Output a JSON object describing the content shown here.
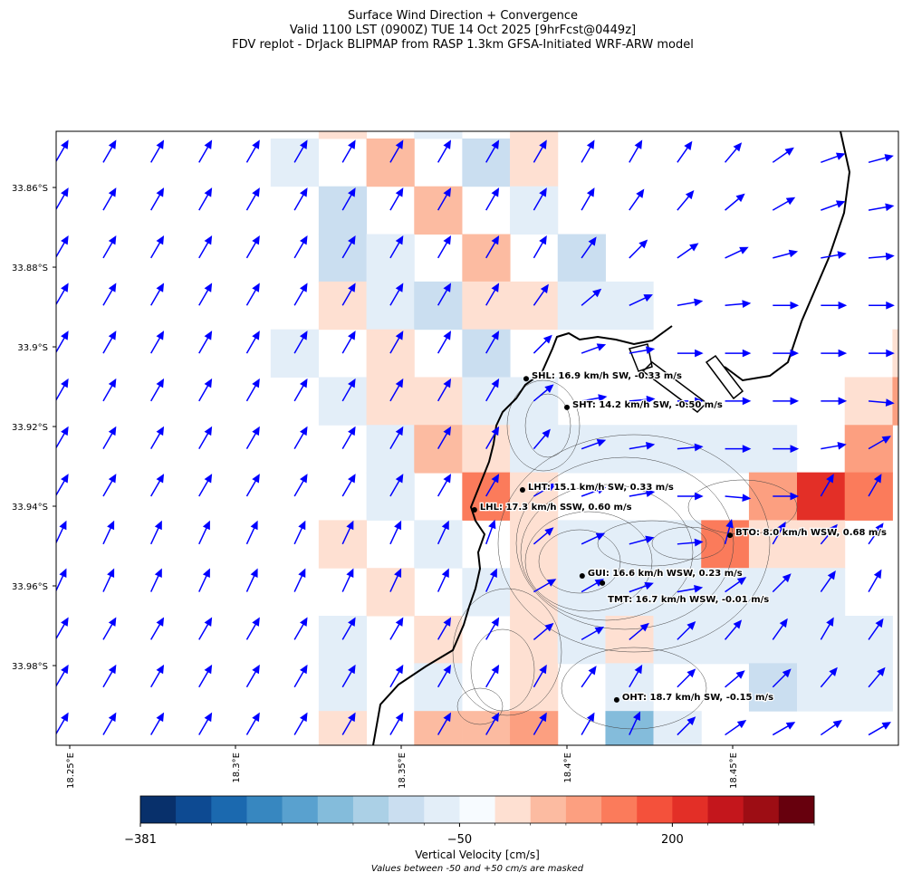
{
  "chart_data": {
    "type": "map",
    "title": [
      "Surface Wind Direction + Convergence",
      "Valid 1100 LST (0900Z) TUE 14 Oct 2025 [9hrFcst@0449z]",
      "FDV replot - DrJack BLIPMAP from RASP 1.3km GFSA-Initiated WRF-ARW model"
    ],
    "xlim": [
      18.2459,
      18.5
    ],
    "ylim": [
      -34.0,
      -33.8459
    ],
    "xticks": [
      {
        "value": 18.25,
        "label": "18.25°E"
      },
      {
        "value": 18.3,
        "label": "18.3°E"
      },
      {
        "value": 18.35,
        "label": "18.35°E"
      },
      {
        "value": 18.4,
        "label": "18.4°E"
      },
      {
        "value": 18.45,
        "label": "18.45°E"
      }
    ],
    "yticks": [
      {
        "value": -33.86,
        "label": "33.86°S"
      },
      {
        "value": -33.88,
        "label": "33.88°S"
      },
      {
        "value": -33.9,
        "label": "33.9°S"
      },
      {
        "value": -33.92,
        "label": "33.92°S"
      },
      {
        "value": -33.94,
        "label": "33.94°S"
      },
      {
        "value": -33.96,
        "label": "33.96°S"
      },
      {
        "value": -33.98,
        "label": "33.98°S"
      }
    ],
    "grid_lon": [
      18.2457,
      18.2601,
      18.2745,
      18.289,
      18.3034,
      18.3178,
      18.3323,
      18.3467,
      18.3611,
      18.3756,
      18.39,
      18.4044,
      18.4188,
      18.4333,
      18.4477,
      18.4621,
      18.4766,
      18.491,
      18.5054
    ],
    "grid_lat": [
      -33.8417,
      -33.8537,
      -33.8657,
      -33.8777,
      -33.8896,
      -33.9016,
      -33.9136,
      -33.9256,
      -33.9375,
      -33.9495,
      -33.9615,
      -33.9735,
      -33.9854,
      -33.9974
    ],
    "vertical_velocity": [
      [
        null,
        null,
        null,
        null,
        null,
        null,
        65,
        null,
        -60,
        null,
        65,
        null,
        null,
        null,
        null,
        null,
        null,
        null,
        null
      ],
      [
        null,
        null,
        null,
        null,
        null,
        -60,
        null,
        95,
        null,
        -100,
        65,
        null,
        null,
        null,
        null,
        null,
        null,
        null,
        null
      ],
      [
        null,
        null,
        null,
        null,
        null,
        null,
        -100,
        null,
        95,
        null,
        -60,
        null,
        null,
        null,
        null,
        null,
        null,
        null,
        null
      ],
      [
        null,
        null,
        null,
        null,
        null,
        null,
        -100,
        -60,
        null,
        95,
        null,
        -100,
        null,
        null,
        null,
        null,
        null,
        null,
        null
      ],
      [
        null,
        null,
        null,
        null,
        null,
        null,
        65,
        -60,
        -100,
        65,
        65,
        -60,
        -60,
        null,
        null,
        null,
        null,
        null,
        null
      ],
      [
        null,
        null,
        null,
        null,
        null,
        -60,
        null,
        65,
        null,
        -100,
        null,
        null,
        null,
        null,
        null,
        null,
        null,
        null,
        65
      ],
      [
        null,
        null,
        null,
        null,
        null,
        null,
        -60,
        65,
        65,
        -60,
        -60,
        null,
        null,
        null,
        null,
        null,
        null,
        65,
        125
      ],
      [
        null,
        null,
        null,
        null,
        null,
        null,
        null,
        -60,
        95,
        65,
        -60,
        -60,
        -60,
        -60,
        -60,
        -60,
        null,
        125,
        null
      ],
      [
        null,
        null,
        null,
        null,
        null,
        null,
        null,
        -60,
        null,
        155,
        65,
        null,
        null,
        null,
        null,
        125,
        215,
        155,
        null
      ],
      [
        null,
        null,
        null,
        null,
        null,
        null,
        65,
        null,
        -60,
        null,
        65,
        -60,
        -60,
        -60,
        155,
        65,
        65,
        null,
        null
      ],
      [
        null,
        null,
        null,
        null,
        null,
        null,
        null,
        65,
        null,
        -60,
        65,
        -60,
        -60,
        -60,
        -60,
        -60,
        -60,
        null,
        null
      ],
      [
        null,
        null,
        null,
        null,
        null,
        null,
        -60,
        null,
        65,
        null,
        65,
        -60,
        65,
        -60,
        -60,
        -60,
        -60,
        -60,
        null
      ],
      [
        null,
        null,
        null,
        null,
        null,
        null,
        -60,
        null,
        -60,
        null,
        65,
        null,
        -60,
        null,
        null,
        -100,
        -60,
        -60,
        null
      ],
      [
        null,
        null,
        null,
        null,
        null,
        null,
        65,
        null,
        95,
        95,
        125,
        null,
        -180,
        -60,
        null,
        null,
        null,
        null,
        null
      ]
    ],
    "wind_toward_deg": [
      [
        null,
        null,
        null,
        null,
        null,
        null,
        null,
        null,
        null,
        null,
        null,
        null,
        null,
        null,
        null,
        null,
        null,
        null,
        null
      ],
      [
        60,
        60,
        60,
        60,
        60,
        60,
        60,
        60,
        60,
        60,
        60,
        60,
        60,
        55,
        50,
        35,
        20,
        15,
        null
      ],
      [
        60,
        60,
        60,
        60,
        60,
        60,
        60,
        60,
        60,
        60,
        60,
        60,
        55,
        50,
        40,
        30,
        20,
        10,
        null
      ],
      [
        60,
        60,
        60,
        60,
        60,
        60,
        60,
        60,
        60,
        60,
        60,
        55,
        45,
        35,
        25,
        15,
        10,
        5,
        null
      ],
      [
        60,
        60,
        60,
        60,
        60,
        60,
        60,
        60,
        60,
        60,
        55,
        40,
        25,
        10,
        5,
        0,
        0,
        0,
        null
      ],
      [
        60,
        60,
        60,
        60,
        60,
        60,
        60,
        60,
        60,
        60,
        45,
        20,
        10,
        0,
        0,
        0,
        0,
        0,
        null
      ],
      [
        60,
        60,
        60,
        60,
        60,
        60,
        60,
        60,
        60,
        60,
        40,
        10,
        5,
        0,
        0,
        0,
        0,
        -5,
        null
      ],
      [
        60,
        60,
        60,
        60,
        60,
        60,
        60,
        60,
        60,
        60,
        50,
        20,
        10,
        5,
        0,
        0,
        10,
        30,
        null
      ],
      [
        60,
        60,
        60,
        60,
        60,
        60,
        60,
        60,
        60,
        60,
        30,
        20,
        10,
        0,
        -5,
        0,
        60,
        60,
        null
      ],
      [
        65,
        65,
        65,
        65,
        65,
        65,
        65,
        65,
        65,
        70,
        40,
        25,
        15,
        5,
        75,
        60,
        50,
        55,
        null
      ],
      [
        65,
        65,
        65,
        65,
        65,
        65,
        65,
        65,
        65,
        65,
        30,
        30,
        20,
        10,
        35,
        45,
        55,
        60,
        null
      ],
      [
        60,
        60,
        60,
        60,
        60,
        60,
        60,
        60,
        60,
        60,
        40,
        30,
        40,
        45,
        50,
        55,
        60,
        55,
        null
      ],
      [
        60,
        60,
        60,
        60,
        60,
        60,
        60,
        60,
        60,
        60,
        60,
        55,
        60,
        45,
        40,
        45,
        50,
        50,
        null
      ],
      [
        60,
        60,
        60,
        60,
        60,
        60,
        60,
        60,
        60,
        60,
        60,
        60,
        65,
        45,
        35,
        30,
        35,
        30,
        null
      ]
    ],
    "wind_color": "#0000ff",
    "stations": [
      {
        "lon": 18.3877,
        "lat": -33.908,
        "label": "SHL: 16.9 km/h SW, -0.33 m/s"
      },
      {
        "lon": 18.4,
        "lat": -33.9152,
        "label": "SHT: 14.2 km/h SW, -0.50 m/s"
      },
      {
        "lon": 18.3866,
        "lat": -33.9359,
        "label": "LHT: 15.1 km/h SW, 0.33 m/s"
      },
      {
        "lon": 18.3721,
        "lat": -33.9409,
        "label": "LHL: 17.3 km/h SSW, 0.60 m/s"
      },
      {
        "lon": 18.4492,
        "lat": -33.9473,
        "label": "BTO: 8.0 km/h WSW, 0.68 m/s"
      },
      {
        "lon": 18.4046,
        "lat": -33.9575,
        "label": "GUI: 16.6 km/h WSW, 0.23 m/s"
      },
      {
        "lon": 18.4107,
        "lat": -33.9593,
        "label": "TMT: 16.7 km/h WSW, -0.01 m/s"
      },
      {
        "lon": 18.415,
        "lat": -33.9886,
        "label": "OHT: 18.7 km/h SW, -0.15 m/s"
      }
    ],
    "colorbar": {
      "label": "Vertical Velocity [cm/s]",
      "boundaries": [
        -381,
        -344.2,
        -307.4,
        -270.6,
        -233.8,
        -197,
        -160.1,
        -123.3,
        -86.6,
        -50,
        50,
        80,
        110,
        140,
        170,
        200,
        230,
        260,
        290,
        320
      ],
      "colors": [
        "#08306b",
        "#0d4a92",
        "#1b69af",
        "#3787c0",
        "#59a1cf",
        "#84bcdb",
        "#abd0e6",
        "#cadef0",
        "#e3eef8",
        "#f7fbff",
        "#fee0d2",
        "#fcbba1",
        "#fc9f80",
        "#fb7b5b",
        "#f4513b",
        "#e32f27",
        "#c4161c",
        "#9d0d14",
        "#67000d"
      ],
      "ticks": [
        {
          "value": -381,
          "label": "−381"
        },
        {
          "value": -50,
          "label": "−50"
        },
        200
      ]
    },
    "note": "Values between -50 and +50 cm/s are masked"
  }
}
